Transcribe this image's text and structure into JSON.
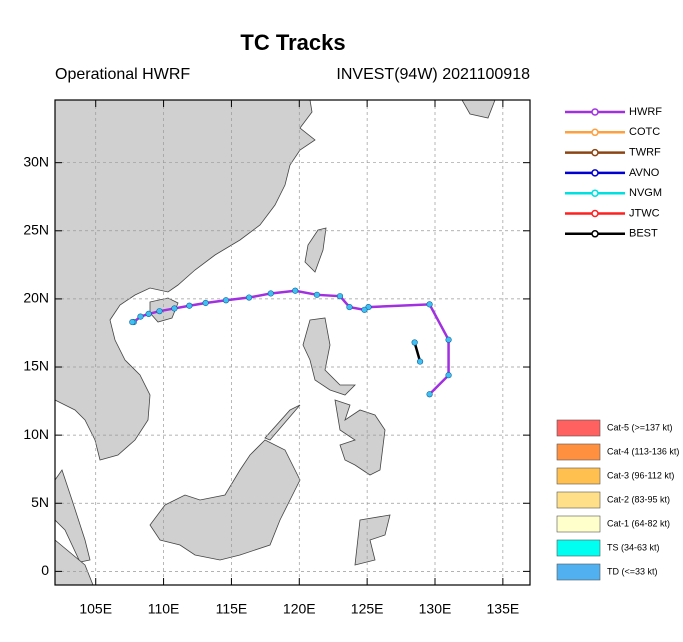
{
  "chart_data": {
    "type": "map",
    "title": "TC Tracks",
    "subtitle_left": "Operational HWRF",
    "subtitle_right": "INVEST(94W) 2021100918",
    "xlim": [
      102,
      137
    ],
    "ylim": [
      -1,
      34.6
    ],
    "xticks": [
      {
        "value": 105,
        "label": "105E"
      },
      {
        "value": 110,
        "label": "110E"
      },
      {
        "value": 115,
        "label": "115E"
      },
      {
        "value": 120,
        "label": "120E"
      },
      {
        "value": 125,
        "label": "125E"
      },
      {
        "value": 130,
        "label": "130E"
      },
      {
        "value": 135,
        "label": "135E"
      }
    ],
    "yticks": [
      0,
      {
        "value": 5,
        "label": "5N"
      },
      {
        "value": 10,
        "label": "10N"
      },
      {
        "value": 15,
        "label": "15N"
      },
      {
        "value": 20,
        "label": "20N"
      },
      {
        "value": 25,
        "label": "25N"
      },
      {
        "value": 30,
        "label": "30N"
      }
    ],
    "grid": true,
    "series": [
      {
        "name": "HWRF",
        "color": "#a030e0",
        "marker_color": "#40c0f0",
        "x": [
          129.6,
          131.0,
          131.0,
          129.6,
          125.1,
          124.8,
          123.7,
          123.0,
          121.3,
          119.7,
          117.9,
          116.3,
          114.6,
          113.1,
          111.9,
          110.8,
          109.7,
          108.9,
          108.3,
          107.8,
          107.7
        ],
        "values": [
          13.0,
          14.4,
          17.0,
          19.6,
          19.4,
          19.2,
          19.4,
          20.2,
          20.3,
          20.6,
          20.4,
          20.1,
          19.9,
          19.7,
          19.5,
          19.3,
          19.1,
          18.9,
          18.7,
          18.3,
          18.3
        ]
      },
      {
        "name": "COTC",
        "color": "#ffa040",
        "x": [],
        "values": []
      },
      {
        "name": "TWRF",
        "color": "#8b4513",
        "x": [],
        "values": []
      },
      {
        "name": "AVNO",
        "color": "#0000d0",
        "x": [],
        "values": []
      },
      {
        "name": "NVGM",
        "color": "#00e0e0",
        "x": [],
        "values": []
      },
      {
        "name": "JTWC",
        "color": "#ff2020",
        "x": [],
        "values": []
      },
      {
        "name": "BEST",
        "color": "#000000",
        "marker_color": "#40c0f0",
        "x": [
          128.5,
          128.9
        ],
        "values": [
          16.8,
          15.4
        ]
      }
    ],
    "intensity_legend": [
      {
        "label": "Cat-5 (>=137 kt)",
        "color": "#ff6060"
      },
      {
        "label": "Cat-4 (113-136 kt)",
        "color": "#ff9040"
      },
      {
        "label": "Cat-3 (96-112 kt)",
        "color": "#ffc050"
      },
      {
        "label": "Cat-2 (83-95 kt)",
        "color": "#ffe088"
      },
      {
        "label": "Cat-1 (64-82 kt)",
        "color": "#ffffcc"
      },
      {
        "label": "TS (34-63 kt)",
        "color": "#00fff0"
      },
      {
        "label": "TD (<=33 kt)",
        "color": "#50b0f0"
      }
    ]
  }
}
